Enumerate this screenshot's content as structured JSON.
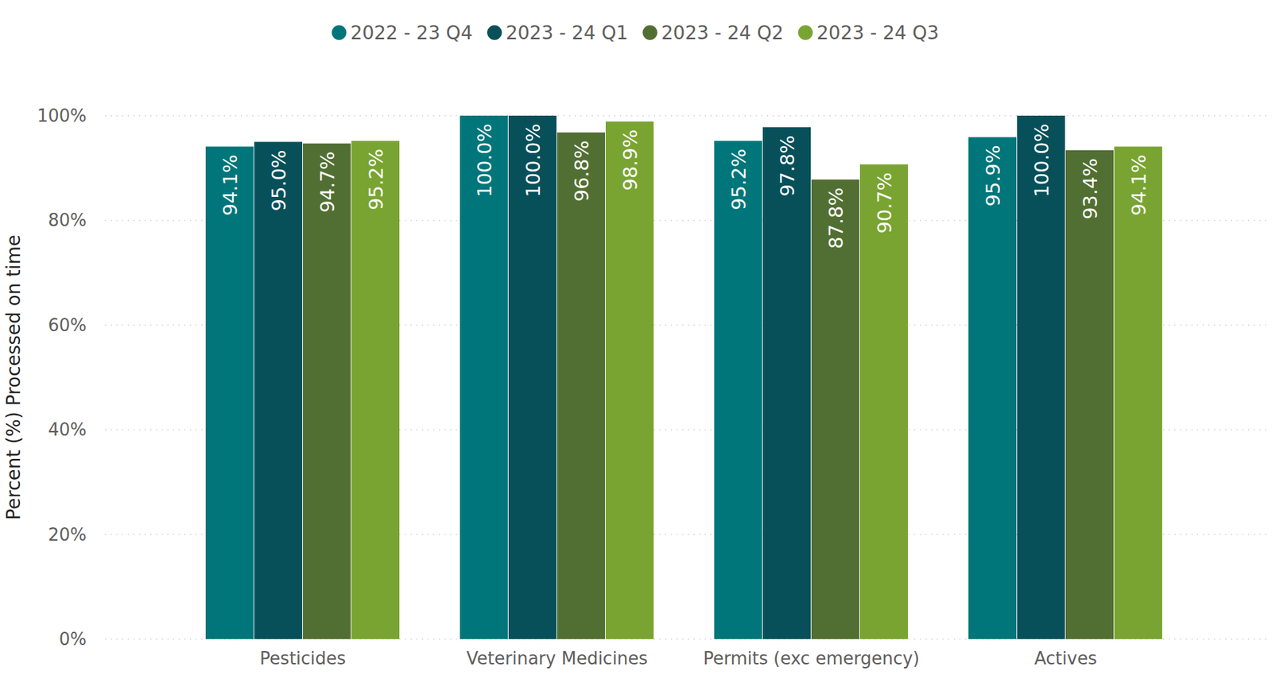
{
  "chart_data": {
    "type": "bar",
    "y_label": "Percent (%) Processed on time",
    "categories": [
      "Pesticides",
      "Veterinary Medicines",
      "Permits (exc emergency)",
      "Actives"
    ],
    "series": [
      {
        "name": "2022 - 23 Q4",
        "color": "#00767a",
        "values": [
          94.1,
          100.0,
          95.2,
          95.9
        ],
        "value_labels": [
          "94.1%",
          "100.0%",
          "95.2%",
          "95.9%"
        ]
      },
      {
        "name": "2023 - 24 Q1",
        "color": "#07505a",
        "values": [
          95.0,
          100.0,
          97.8,
          100.0
        ],
        "value_labels": [
          "95.0%",
          "100.0%",
          "97.8%",
          "100.0%"
        ]
      },
      {
        "name": "2023 - 24 Q2",
        "color": "#526f33",
        "values": [
          94.7,
          96.8,
          87.8,
          93.4
        ],
        "value_labels": [
          "94.7%",
          "96.8%",
          "87.8%",
          "93.4%"
        ]
      },
      {
        "name": "2023 - 24 Q3",
        "color": "#79a432",
        "values": [
          95.2,
          98.9,
          90.7,
          94.1
        ],
        "value_labels": [
          "95.2%",
          "98.9%",
          "90.7%",
          "94.1%"
        ]
      }
    ],
    "ylim": [
      0,
      100
    ],
    "yticks": [
      {
        "value": 0,
        "label": "0%"
      },
      {
        "value": 20,
        "label": "20%"
      },
      {
        "value": 40,
        "label": "40%"
      },
      {
        "value": 60,
        "label": "60%"
      },
      {
        "value": 80,
        "label": "80%"
      },
      {
        "value": 100,
        "label": "100%"
      }
    ],
    "grid": true,
    "legend": "top",
    "data_labels": true
  }
}
